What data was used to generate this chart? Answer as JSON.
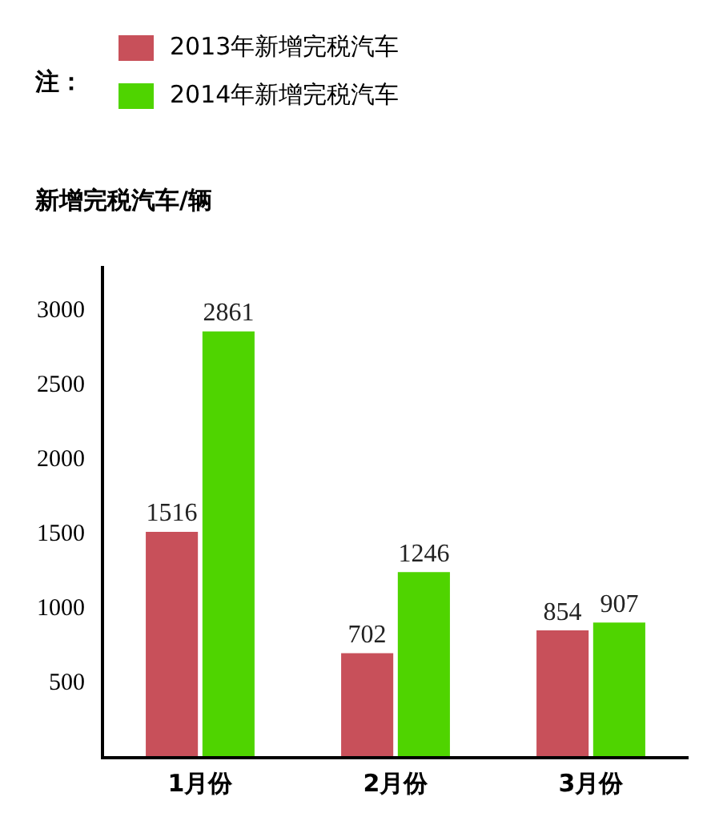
{
  "chart_data": {
    "type": "bar",
    "ylabel": "新增完税汽车/辆",
    "legend_title": "注：",
    "legend": "top left",
    "categories": [
      "1月份",
      "2月份",
      "3月份"
    ],
    "series": [
      {
        "name": "2013年新增完税汽车",
        "color": "#c8505a",
        "values": [
          1516,
          702,
          854
        ]
      },
      {
        "name": "2014年新增完税汽车",
        "color": "#4fd400",
        "values": [
          2861,
          1246,
          907
        ]
      }
    ],
    "ylim": [
      0,
      3300
    ],
    "yticks": [
      500,
      1000,
      1500,
      2000,
      2500,
      3000
    ],
    "grid": false,
    "data_labels": true
  }
}
